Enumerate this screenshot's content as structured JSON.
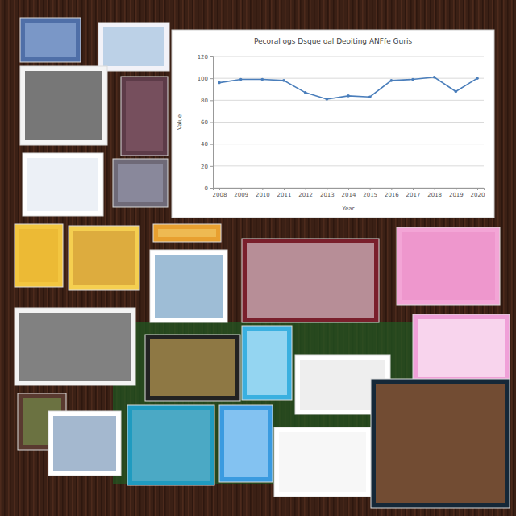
{
  "chart_data": {
    "type": "line",
    "title": "Pecoral ogs Dsque oal Deoiting ANFfe Guris",
    "x_label": "Year",
    "y_label": "Value",
    "categories": [
      "2008",
      "2009",
      "2010",
      "2011",
      "2012",
      "2013",
      "2014",
      "2015",
      "2016",
      "2017",
      "2018",
      "2019",
      "2020"
    ],
    "values": [
      96,
      99,
      99,
      98,
      87,
      81,
      84,
      83,
      98,
      99,
      101,
      88,
      100
    ],
    "color": "#4a7ebb",
    "marker": "circle",
    "ylim": [
      0,
      120
    ],
    "yticks": [
      0,
      20,
      40,
      60,
      80,
      100,
      120
    ],
    "grid": true
  }
}
